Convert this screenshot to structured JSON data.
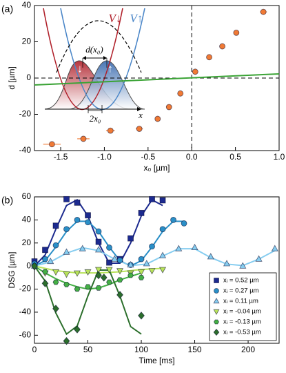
{
  "chart_data": [
    {
      "type": "scatter",
      "panel_label": "(a)",
      "xlabel": "x₀ [µm]",
      "ylabel": "d [µm]",
      "xlim": [
        -1.8,
        1.0
      ],
      "ylim": [
        -40,
        40
      ],
      "xticks": [
        {
          "value": -1.5,
          "label": "-1.5"
        },
        {
          "value": -1,
          "label": "-1.0"
        },
        -0.5,
        {
          "value": 0,
          "label": "0.0"
        },
        0.5,
        {
          "value": 1,
          "label": "1.0"
        }
      ],
      "yticks": [
        -40,
        -20,
        0,
        20,
        40
      ],
      "series": [
        {
          "color": "#f07a35",
          "marker": "circle",
          "x": [
            -1.6,
            -1.24,
            -0.93,
            -0.6,
            -0.39,
            -0.26,
            -0.13,
            0.04,
            0.2,
            0.35,
            0.51,
            0.82
          ],
          "values": [
            -36.5,
            -33.5,
            -29,
            -28,
            -22.5,
            -16,
            -8.5,
            3.5,
            11.5,
            17.5,
            25,
            36.5
          ],
          "x_err": [
            0.1,
            0.07,
            0.05,
            0.04,
            0.03,
            0.03,
            0.02,
            0.02,
            0.02,
            0.02,
            0.03,
            0.04
          ]
        }
      ],
      "fits": [
        {
          "color": "#3aa335",
          "x": [
            -1.8,
            1.0
          ],
          "values": [
            -3.8,
            2.3
          ]
        }
      ],
      "inset_labels": [
        "V↓",
        "V↑",
        "d(x₀)",
        "2x₀",
        "x",
        "↓",
        "↑"
      ]
    },
    {
      "type": "scatter",
      "panel_label": "(b)",
      "xlabel": "Time [ms]",
      "ylabel": "DSG [µm]",
      "xlim": [
        0,
        229
      ],
      "ylim": [
        -67,
        60
      ],
      "xticks": [
        0,
        50,
        100,
        150,
        200
      ],
      "yticks": [
        -60,
        -40,
        -20,
        0,
        20,
        40,
        60
      ],
      "legend": "lower right",
      "series": [
        {
          "name": "xᵢ =  0.52 µm",
          "color": "#1c2a8f",
          "marker": "square",
          "x": [
            0,
            10,
            20,
            30,
            40,
            50,
            60,
            70,
            80,
            90,
            100,
            110,
            120
          ],
          "values": [
            4,
            14,
            35,
            58,
            55,
            44,
            21,
            3,
            6,
            24,
            46,
            58,
            57
          ]
        },
        {
          "name": "xᵢ =  0.27 µm",
          "color": "#2a8fc7",
          "marker": "circle",
          "x": [
            0,
            10,
            20,
            30,
            40,
            50,
            60,
            70,
            80,
            90,
            100,
            110,
            120,
            130,
            140
          ],
          "values": [
            2,
            6,
            18,
            32,
            40,
            38,
            30,
            16,
            5,
            1,
            6,
            17,
            32,
            40,
            37
          ]
        },
        {
          "name": "xᵢ =  0.11 µm",
          "color": "#86cdf0",
          "marker": "triangle-up",
          "x": [
            0,
            15,
            30,
            45,
            60,
            75,
            90,
            105,
            120,
            135,
            150,
            165,
            180,
            195,
            210,
            225
          ],
          "values": [
            0,
            4,
            12,
            15,
            14,
            6,
            1,
            2,
            9,
            15,
            16,
            8,
            2,
            0,
            6,
            15
          ]
        },
        {
          "name": "xᵢ = -0.04 µm",
          "color": "#b8e35a",
          "marker": "triangle-down",
          "x": [
            0,
            10,
            20,
            30,
            40,
            50,
            60,
            70,
            80,
            90,
            100,
            110,
            120
          ],
          "values": [
            -1,
            -6,
            -5,
            -7,
            -6,
            -5,
            -3,
            -3,
            -4,
            -6,
            -5,
            -4,
            -3
          ]
        },
        {
          "name": "xᵢ = -0.13 µm",
          "color": "#44b044",
          "marker": "hexagon",
          "x": [
            0,
            10,
            20,
            30,
            40,
            50,
            60,
            70,
            80,
            90,
            100
          ],
          "values": [
            0,
            -5,
            -14,
            -16,
            -20,
            -18,
            -19,
            -14,
            -12,
            -8,
            -10
          ]
        },
        {
          "name": "xᵢ = -0.53 µm",
          "color": "#2b6e2b",
          "marker": "diamond",
          "x": [
            0,
            10,
            20,
            30,
            40,
            60,
            65,
            80,
            100
          ],
          "values": [
            0,
            -15,
            -37,
            -65,
            -55,
            -8,
            -10,
            -25,
            -43
          ]
        }
      ],
      "fits": [
        {
          "color": "#1c2a8f",
          "x": [
            0,
            10,
            20,
            30,
            40,
            50,
            60,
            70,
            80,
            90,
            100,
            110,
            120
          ],
          "values": [
            0,
            9.6,
            32,
            52.5,
            57.4,
            43.5,
            20,
            2.5,
            2.5,
            20,
            43.5,
            57.4,
            52.5
          ]
        },
        {
          "color": "#2a8fc7",
          "x": [
            0,
            10,
            20,
            30,
            40,
            50,
            60,
            70,
            80,
            90,
            100,
            110,
            120,
            130,
            140
          ],
          "values": [
            0,
            4.7,
            16.5,
            30,
            38.8,
            38.8,
            30,
            16.5,
            4.7,
            0,
            4.7,
            16.5,
            30,
            38.8,
            38.8
          ]
        },
        {
          "color": "#86cdf0",
          "x": [
            0,
            15,
            30,
            45,
            60,
            75,
            90,
            105,
            120,
            135,
            150,
            165,
            180,
            195,
            210,
            225
          ],
          "values": [
            0,
            3.6,
            11.2,
            15.9,
            13.4,
            6,
            0.4,
            1.7,
            8.7,
            15,
            15,
            7.3,
            1.7,
            0.4,
            6,
            13.4
          ]
        },
        {
          "color": "#b8e35a",
          "x": [
            0,
            20,
            40,
            60,
            80,
            100,
            120
          ],
          "values": [
            0,
            -4,
            -6,
            -6,
            -5,
            -3,
            -2
          ]
        },
        {
          "color": "#44b044",
          "x": [
            0,
            10,
            20,
            30,
            40,
            50,
            60,
            70,
            80,
            90,
            100
          ],
          "values": [
            0,
            -6,
            -11,
            -15,
            -18,
            -20,
            -19,
            -16,
            -12,
            -9,
            -6
          ]
        },
        {
          "color": "#2b6e2b",
          "x": [
            0,
            10,
            20,
            30,
            40,
            50,
            60,
            70,
            80,
            90,
            100
          ],
          "values": [
            0,
            -13,
            -40.7,
            -59,
            -52,
            -26,
            -3.5,
            -3.5,
            -26,
            -52.5,
            -59
          ]
        }
      ]
    }
  ]
}
